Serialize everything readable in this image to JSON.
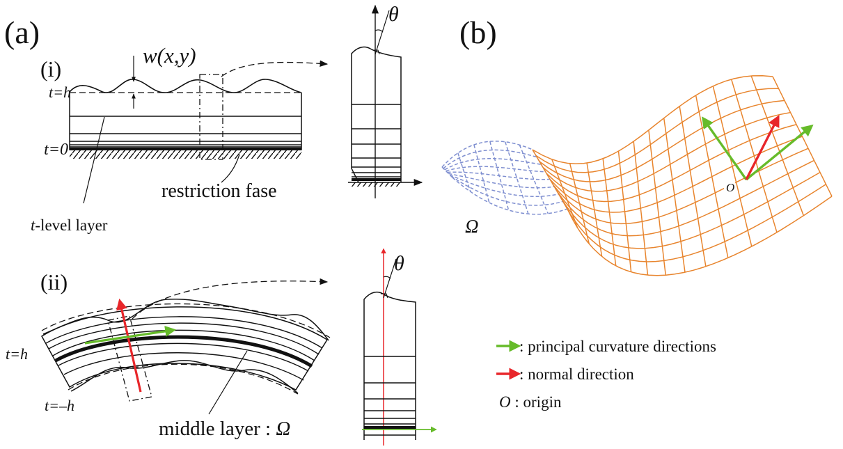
{
  "panel_a": {
    "label": "(a)",
    "sub_i": {
      "label": "(i)",
      "w_label": "w(x,y)",
      "t_top": "t=h",
      "t_bottom": "t=0",
      "restriction": "restriction fase",
      "layer_label_var": "t",
      "layer_label_rest": "-level layer",
      "theta": "θ"
    },
    "sub_ii": {
      "label": "(ii)",
      "t_top": "t=h",
      "t_bottom": "t=–h",
      "middle_label": "middle layer : ",
      "omega": "Ω",
      "theta": "θ"
    }
  },
  "panel_b": {
    "label": "(b)",
    "omega": "Ω",
    "origin_mark": "O",
    "legend": [
      {
        "arrow": "green-arrow-icon",
        "text": ": principal curvature directions"
      },
      {
        "arrow": "red-arrow-icon",
        "text": ": normal direction"
      },
      {
        "symbol": "O",
        "text": " : origin"
      }
    ]
  },
  "colors": {
    "green": "#66bb2a",
    "red": "#e8262a",
    "orange": "#e8852e",
    "blue": "#7f8fd0",
    "ink": "#111111"
  }
}
